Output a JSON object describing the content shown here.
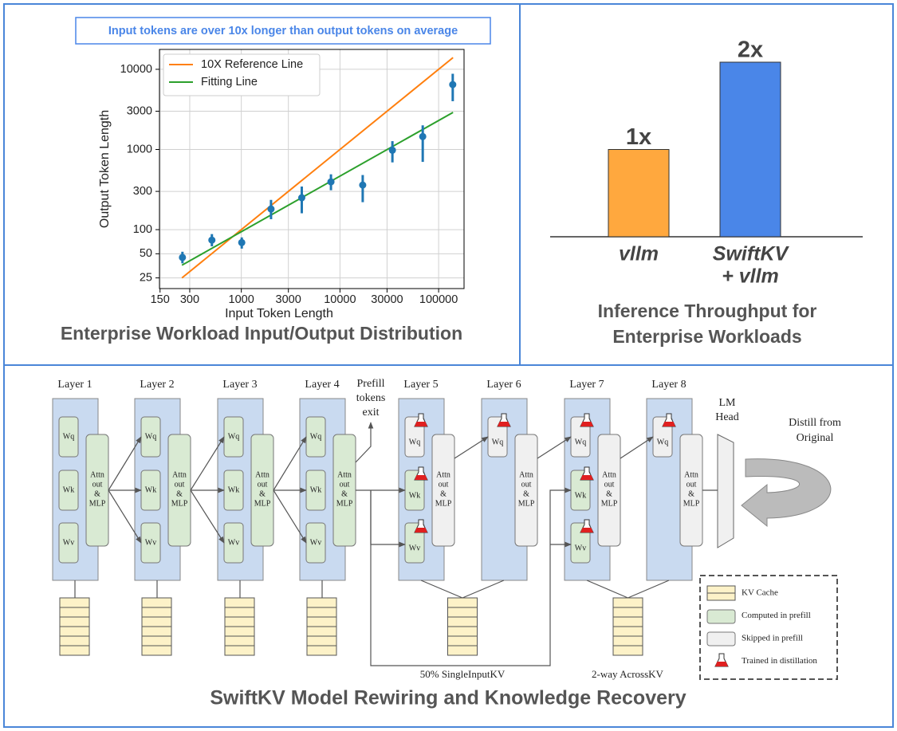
{
  "chart_data": [
    {
      "type": "scatter",
      "title": "Enterprise Workload Input/Output Distribution",
      "annotation": "Input tokens are over 10x longer than output tokens on average",
      "xlabel": "Input Token Length",
      "ylabel": "Output Token Length",
      "xscale": "log",
      "yscale": "log",
      "xlim": [
        148,
        181000
      ],
      "ylim": [
        18.4,
        17700
      ],
      "xticks": [
        150,
        300,
        1000,
        3000,
        10000,
        30000,
        100000
      ],
      "yticks": [
        25,
        50,
        100,
        300,
        1000,
        3000,
        10000
      ],
      "grid": true,
      "legend": "upper left",
      "x": [
        253,
        503,
        1010,
        2000,
        4100,
        8100,
        17000,
        34000,
        69000,
        139000
      ],
      "values": [
        45,
        74,
        69,
        181,
        250,
        395,
        360,
        980,
        1450,
        6450
      ],
      "y_low": [
        38,
        62,
        58,
        135,
        160,
        310,
        220,
        690,
        700,
        4000
      ],
      "y_high": [
        53,
        88,
        80,
        235,
        345,
        490,
        480,
        1270,
        2000,
        8800
      ],
      "color": "#1f77b4",
      "series": [
        {
          "name": "10X Reference Line",
          "color": "#ff7f0e",
          "x": [
            250,
            140000
          ],
          "values": [
            25,
            14000
          ]
        },
        {
          "name": "Fitting Line",
          "color": "#2ca02c",
          "x": [
            250,
            140000
          ],
          "values": [
            36,
            2900
          ]
        }
      ]
    },
    {
      "type": "bar",
      "title": [
        "Inference Throughput for",
        "Enterprise Workloads"
      ],
      "categories": [
        [
          "vllm"
        ],
        [
          "SwiftKV",
          "+ vllm"
        ]
      ],
      "values": [
        1,
        2
      ],
      "value_labels": [
        "1x",
        "2x"
      ],
      "colors": [
        "#ffa83e",
        "#4a86e8"
      ]
    }
  ],
  "diagram": {
    "title": "SwiftKV Model Rewiring and Knowledge Recovery",
    "layers": [
      {
        "label": "Layer 1",
        "weights": [
          "Wq",
          "Wk",
          "Wv"
        ]
      },
      {
        "label": "Layer 2",
        "weights": [
          "Wq",
          "Wk",
          "Wv"
        ]
      },
      {
        "label": "Layer 3",
        "weights": [
          "Wq",
          "Wk",
          "Wv"
        ]
      },
      {
        "label": "Layer 4",
        "weights": [
          "Wq",
          "Wk",
          "Wv"
        ]
      },
      {
        "label": "Layer 5",
        "weights": [
          "Wq",
          "Wk",
          "Wv"
        ]
      },
      {
        "label": "Layer 6",
        "weights": [
          "Wq"
        ]
      },
      {
        "label": "Layer 7",
        "weights": [
          "Wq",
          "Wk",
          "Wv"
        ]
      },
      {
        "label": "Layer 8",
        "weights": [
          "Wq"
        ]
      }
    ],
    "block": [
      "Attn",
      "out",
      "&",
      "MLP"
    ],
    "prefill_exit": [
      "Prefill",
      "tokens",
      "exit"
    ],
    "lm_head": [
      "LM",
      "Head"
    ],
    "distill": [
      "Distill from",
      "Original"
    ],
    "single_input_kv": "50% SingleInputKV",
    "across_kv": "2-way AcrossKV",
    "legend": [
      "KV Cache",
      "Computed in prefill",
      "Skipped in prefill",
      "Trained in distillation"
    ]
  }
}
